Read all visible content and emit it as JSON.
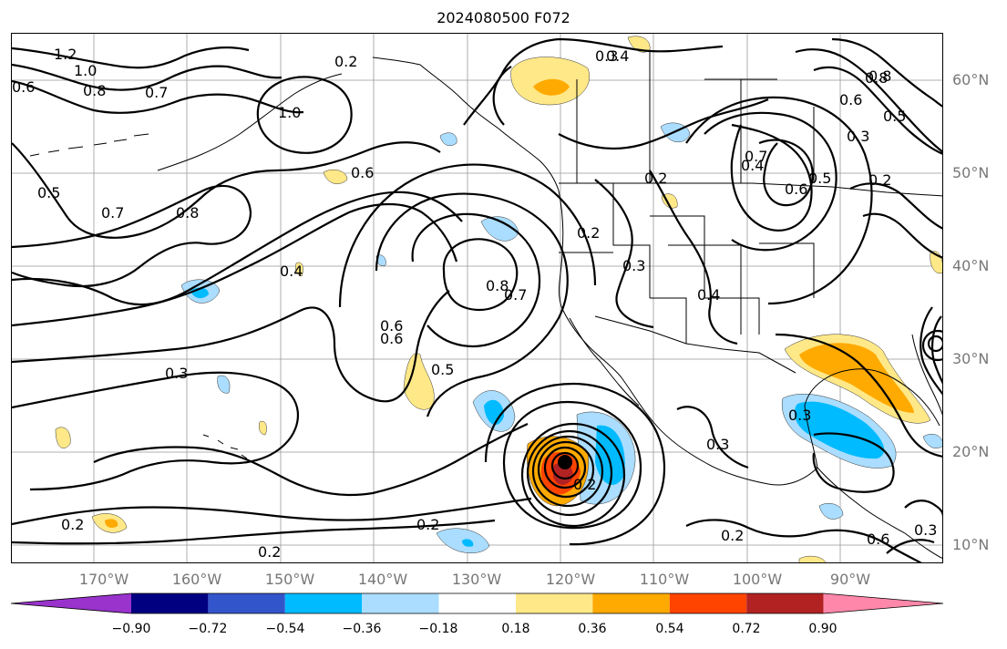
{
  "title": "2024080500 F072",
  "map": {
    "lon_range": [
      -180,
      -80
    ],
    "lat_range": [
      8,
      65
    ],
    "grid": true,
    "lat_labels": [
      "10°N",
      "20°N",
      "30°N",
      "40°N",
      "50°N",
      "60°N"
    ],
    "lon_labels": [
      "170°W",
      "160°W",
      "150°W",
      "140°W",
      "130°W",
      "120°W",
      "110°W",
      "100°W",
      "90°W"
    ],
    "contour_labels": [
      "1.2",
      "1.0",
      "0.8",
      "0.6",
      "0.7",
      "0.2",
      "1.0",
      "0.5",
      "0.7",
      "0.8",
      "0.6",
      "0.4",
      "0.4",
      "0.3",
      "0.6",
      "0.8",
      "0.7",
      "0.6",
      "0.5",
      "0.2",
      "0.2",
      "0.3",
      "0.4",
      "0.4",
      "0.6",
      "0.5",
      "0.7",
      "0.3",
      "0.3",
      "0.8",
      "0.5",
      "0.3",
      "0.2",
      "0.3",
      "0.2",
      "0.2",
      "0.2",
      "0.2",
      "0.6",
      "0.3",
      "0.6",
      "0.8",
      "0.2"
    ]
  },
  "colorbar": {
    "colors": [
      "#9933cc",
      "#000080",
      "#3355cc",
      "#00bbff",
      "#aaddff",
      "#ffffff",
      "#ffe888",
      "#ffaa00",
      "#ff4400",
      "#b22222",
      "#ff88aa"
    ],
    "ticks": [
      "−0.90",
      "−0.72",
      "−0.54",
      "−0.36",
      "−0.18",
      "0.18",
      "0.36",
      "0.54",
      "0.72",
      "0.90"
    ]
  }
}
